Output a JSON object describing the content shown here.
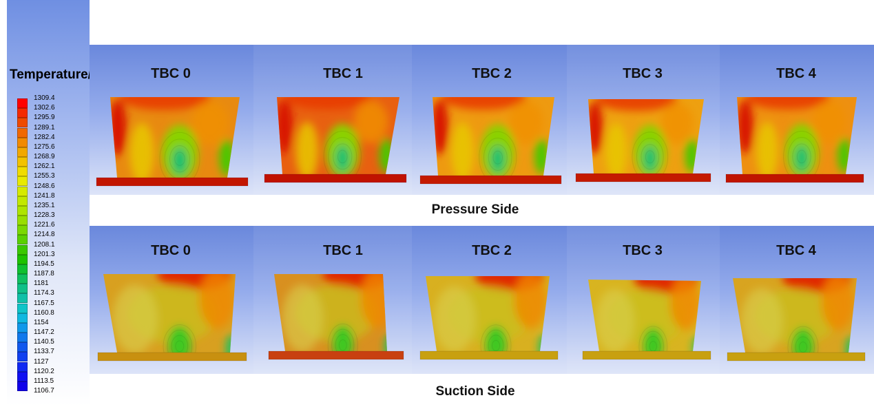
{
  "legend": {
    "title": "Temperature/°C",
    "ticks": [
      "1309.4",
      "1302.6",
      "1295.9",
      "1289.1",
      "1282.4",
      "1275.6",
      "1268.9",
      "1262.1",
      "1255.3",
      "1248.6",
      "1241.8",
      "1235.1",
      "1228.3",
      "1221.6",
      "1214.8",
      "1208.1",
      "1201.3",
      "1194.5",
      "1187.8",
      "1181",
      "1174.3",
      "1167.5",
      "1160.8",
      "1154",
      "1147.2",
      "1140.5",
      "1133.7",
      "1127",
      "1120.2",
      "1113.5",
      "1106.7"
    ],
    "colors": [
      "#ff0000",
      "#f42a00",
      "#ee4a00",
      "#f06800",
      "#f28a00",
      "#f2a800",
      "#f2c200",
      "#f0dc00",
      "#e8ea00",
      "#d6ea00",
      "#c2e800",
      "#aee400",
      "#98de00",
      "#7ad800",
      "#5ad000",
      "#3ac800",
      "#1ec200",
      "#10c030",
      "#10c060",
      "#10c088",
      "#10c0a8",
      "#10c4c8",
      "#10b8e0",
      "#1098ea",
      "#1078ec",
      "#1058ee",
      "#1040f0",
      "#1028f2",
      "#1010f2",
      "#1000ea"
    ]
  },
  "pressure_side": {
    "row_label": "Pressure Side",
    "panels": [
      {
        "title": "TBC 0"
      },
      {
        "title": "TBC 1"
      },
      {
        "title": "TBC 2"
      },
      {
        "title": "TBC 3"
      },
      {
        "title": "TBC 4"
      }
    ]
  },
  "suction_side": {
    "row_label": "Suction Side",
    "panels": [
      {
        "title": "TBC 0"
      },
      {
        "title": "TBC 1"
      },
      {
        "title": "TBC 2"
      },
      {
        "title": "TBC 3"
      },
      {
        "title": "TBC 4"
      }
    ]
  }
}
